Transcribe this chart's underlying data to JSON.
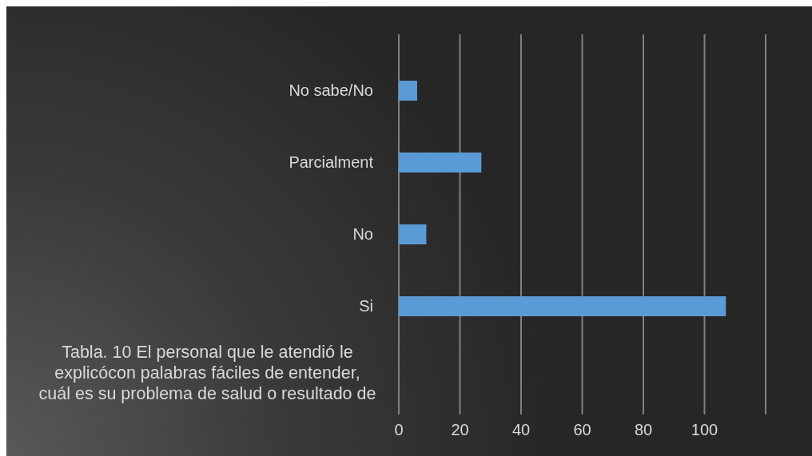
{
  "chart_data": {
    "type": "bar",
    "orientation": "horizontal",
    "title": "Tabla. 10 El personal que le atendió le explicócon palabras fáciles de entender, cuál es su problema de salud o resultado de",
    "categories": [
      "No sabe/No",
      "Parcialment",
      "No",
      "Si"
    ],
    "values": [
      6,
      27,
      9,
      107
    ],
    "color": "#5b9bd5",
    "xlim": [
      0,
      120
    ],
    "xticks": [
      0,
      20,
      40,
      60,
      80,
      100,
      {
        "value": 120,
        "label": null
      }
    ],
    "grid": "x"
  }
}
